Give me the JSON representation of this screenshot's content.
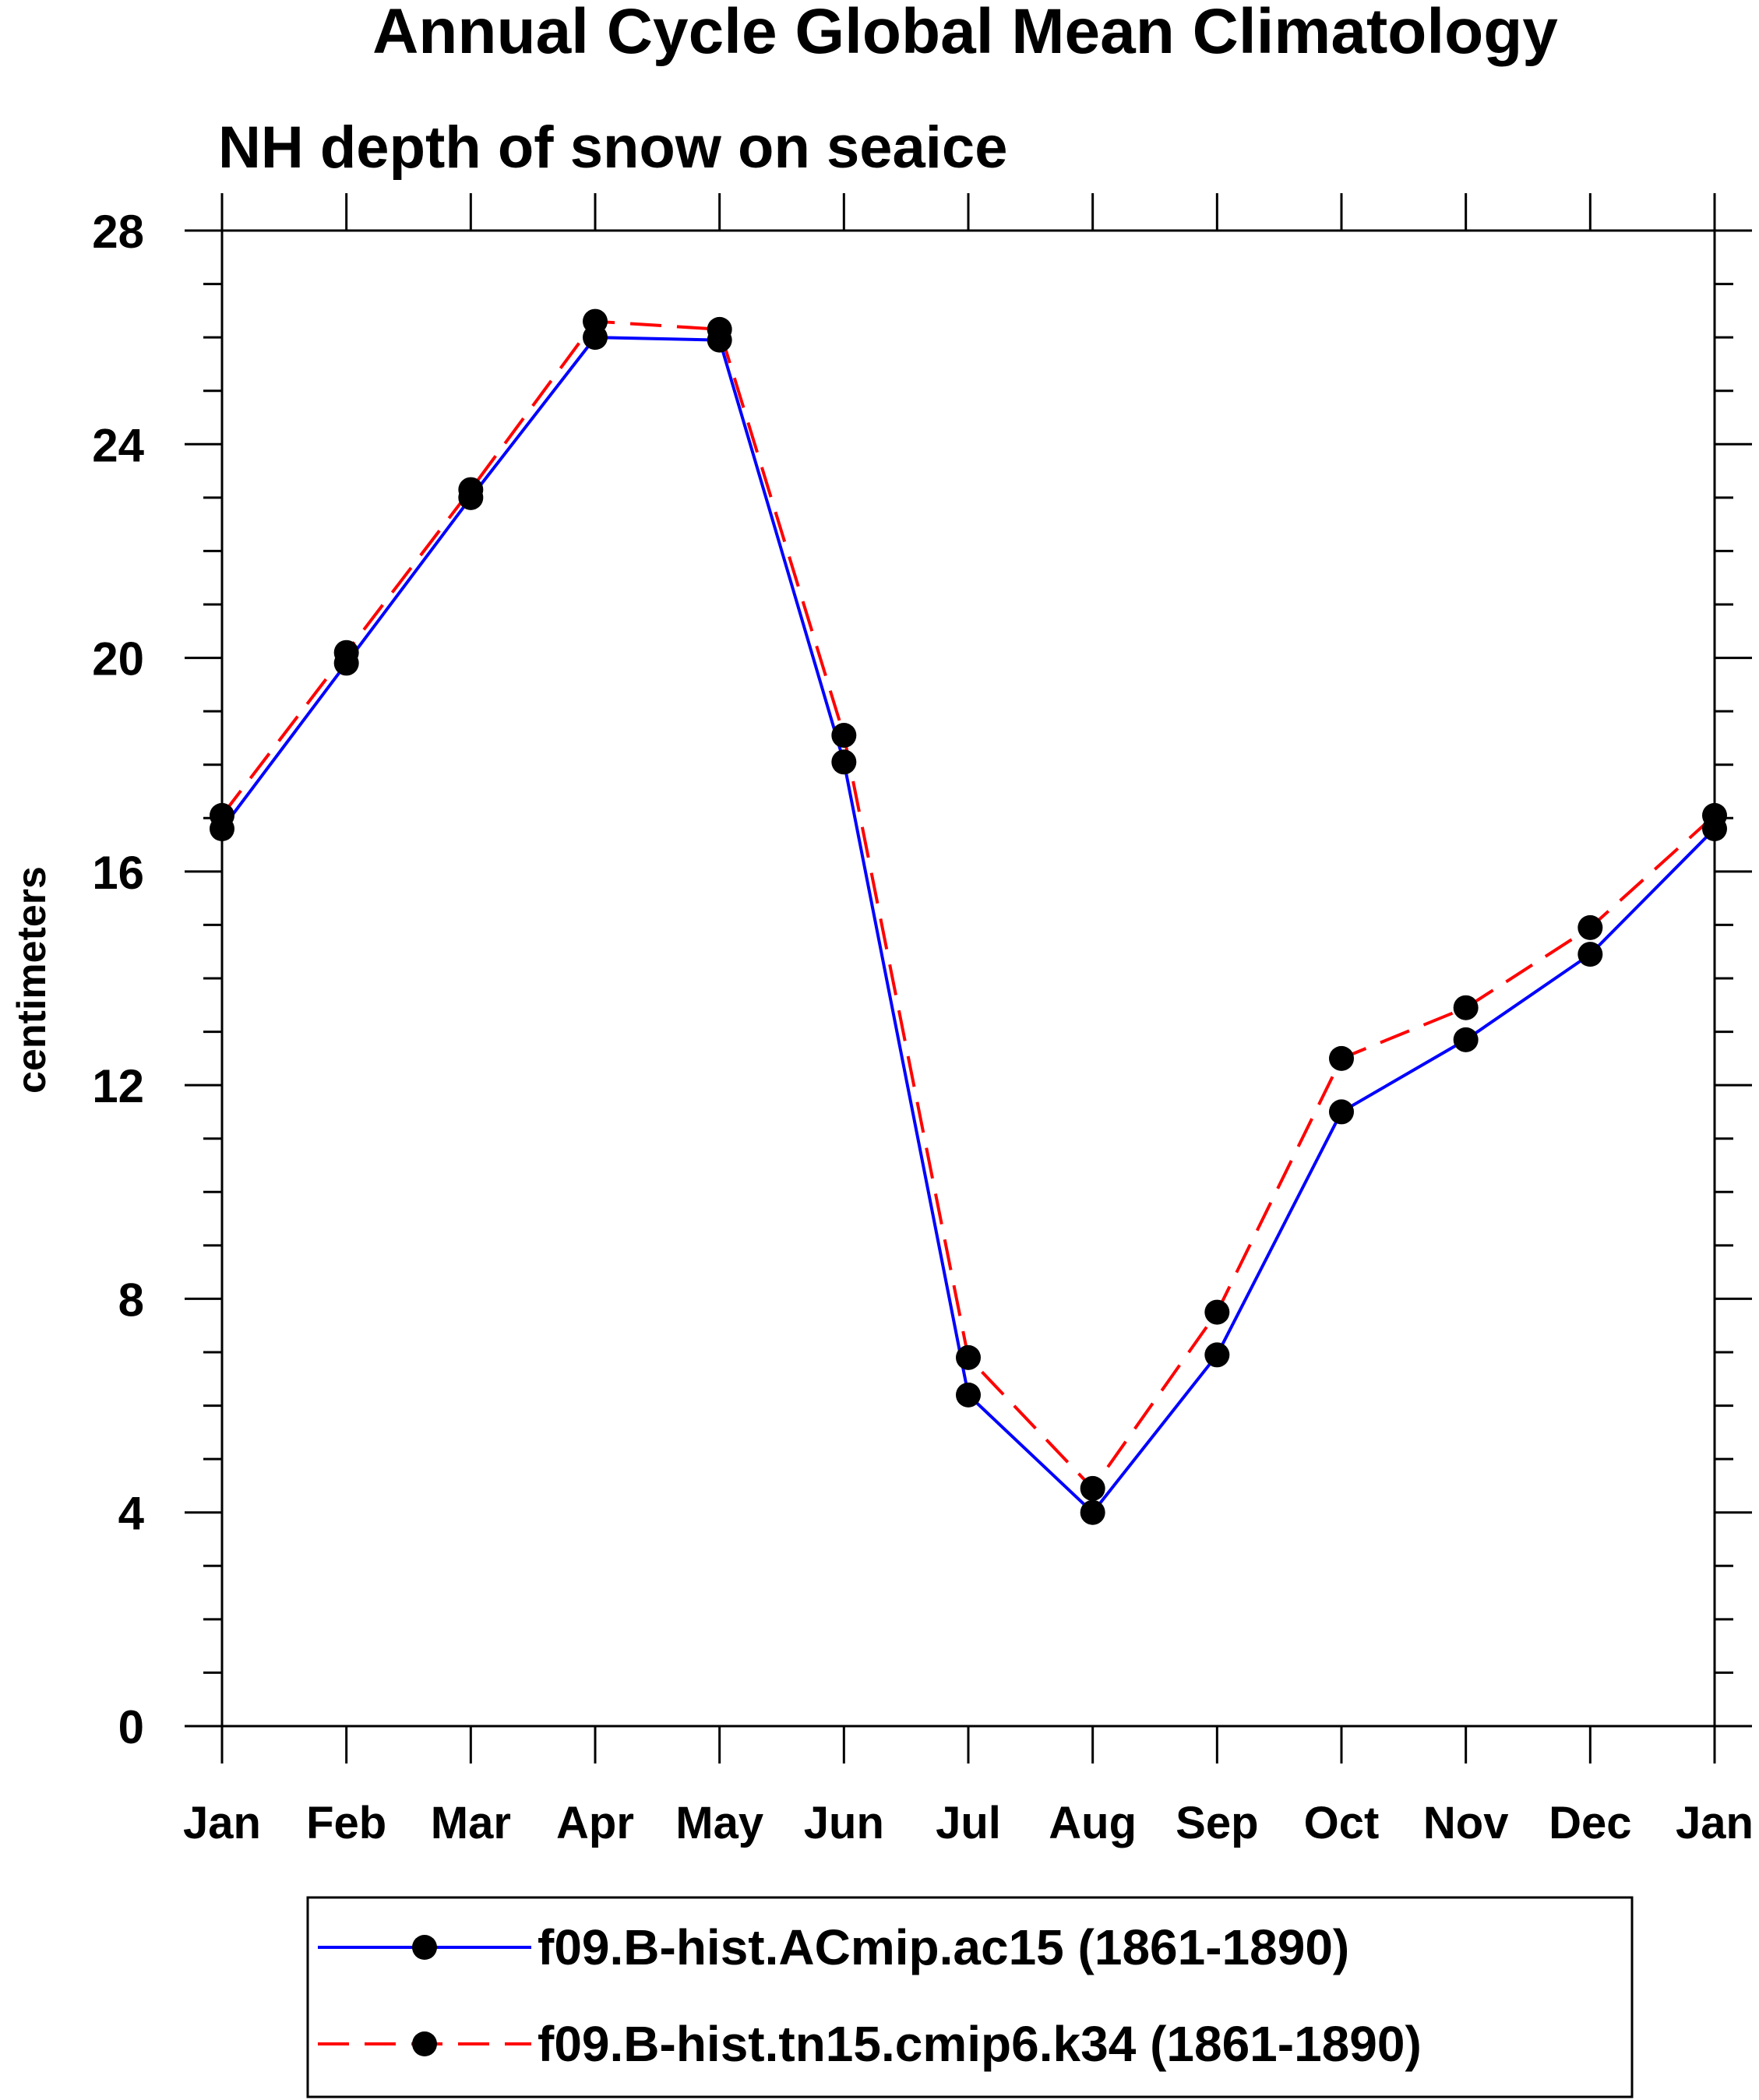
{
  "chart_data": {
    "type": "line",
    "title": "Annual Cycle Global Mean Climatology",
    "subtitle": "NH depth of snow on seaice",
    "xlabel": "",
    "ylabel": "centimeters",
    "ylim": [
      0,
      28
    ],
    "yticks": [
      0,
      4,
      8,
      12,
      16,
      20,
      24,
      28
    ],
    "categories": [
      "Jan",
      "Feb",
      "Mar",
      "Apr",
      "May",
      "Jun",
      "Jul",
      "Aug",
      "Sep",
      "Oct",
      "Nov",
      "Dec",
      "Jan"
    ],
    "grid": false,
    "legend": "bottom",
    "series": [
      {
        "name": "f09.B-hist.ACmip.ac15 (1861-1890)",
        "color": "#0000ff",
        "dash": "solid",
        "values": [
          16.8,
          19.9,
          23.0,
          26.0,
          25.95,
          18.05,
          6.2,
          4.0,
          6.95,
          11.5,
          12.85,
          14.45,
          16.8
        ]
      },
      {
        "name": "f09.B-hist.tn15.cmip6.k34 (1861-1890)",
        "color": "#ff0000",
        "dash": "dashed",
        "values": [
          17.05,
          20.1,
          23.15,
          26.3,
          26.15,
          18.55,
          6.9,
          4.45,
          7.75,
          12.5,
          13.45,
          14.95,
          17.05
        ]
      }
    ]
  }
}
